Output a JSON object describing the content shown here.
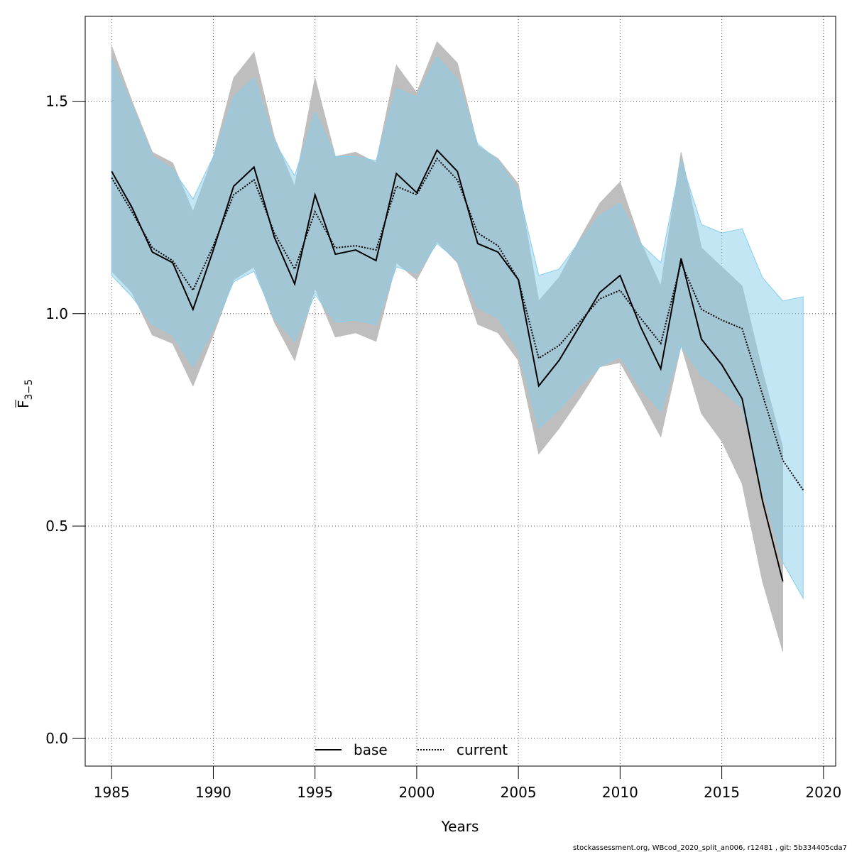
{
  "chart_data": {
    "type": "line",
    "xlabel": "Years",
    "ylabel": {
      "main": "F",
      "subscript": "3−5"
    },
    "xlim": [
      1983.7,
      2020.6
    ],
    "ylim": [
      -0.065,
      1.7
    ],
    "x_ticks": [
      1985,
      1990,
      1995,
      2000,
      2005,
      2010,
      2015,
      2020
    ],
    "x_tick_labels": [
      "1985",
      "1990",
      "1995",
      "2000",
      "2005",
      "2010",
      "2015",
      "2020"
    ],
    "y_ticks": [
      0.0,
      0.5,
      1.0,
      1.5
    ],
    "y_tick_labels": [
      "0.0",
      "0.5",
      "1.0",
      "1.5"
    ],
    "grid": true,
    "legend_position": "bottom-center",
    "series": [
      {
        "name": "base",
        "line_style": "solid",
        "line_color": "#000000",
        "band_color": "#bebebe",
        "x": [
          1985,
          1986,
          1987,
          1988,
          1989,
          1990,
          1991,
          1992,
          1993,
          1994,
          1995,
          1996,
          1997,
          1998,
          1999,
          2000,
          2001,
          2002,
          2003,
          2004,
          2005,
          2006,
          2007,
          2008,
          2009,
          2010,
          2011,
          2012,
          2013,
          2014,
          2015,
          2016,
          2017,
          2018
        ],
        "values": [
          1.335,
          1.25,
          1.145,
          1.12,
          1.01,
          1.15,
          1.3,
          1.345,
          1.18,
          1.07,
          1.28,
          1.14,
          1.15,
          1.125,
          1.33,
          1.285,
          1.385,
          1.335,
          1.165,
          1.145,
          1.08,
          0.83,
          0.89,
          0.97,
          1.05,
          1.09,
          0.97,
          0.87,
          1.13,
          0.94,
          0.88,
          0.8,
          0.56,
          0.37
        ],
        "lower": [
          1.1,
          1.05,
          0.95,
          0.93,
          0.83,
          0.95,
          1.08,
          1.11,
          0.98,
          0.89,
          1.06,
          0.945,
          0.955,
          0.935,
          1.12,
          1.08,
          1.17,
          1.12,
          0.975,
          0.955,
          0.89,
          0.67,
          0.73,
          0.8,
          0.875,
          0.885,
          0.8,
          0.71,
          0.925,
          0.765,
          0.7,
          0.6,
          0.37,
          0.205
        ],
        "upper": [
          1.63,
          1.5,
          1.38,
          1.355,
          1.24,
          1.37,
          1.555,
          1.615,
          1.415,
          1.3,
          1.555,
          1.37,
          1.38,
          1.355,
          1.585,
          1.52,
          1.64,
          1.59,
          1.395,
          1.365,
          1.305,
          1.03,
          1.085,
          1.175,
          1.26,
          1.31,
          1.17,
          1.065,
          1.38,
          1.155,
          1.11,
          1.065,
          0.865,
          0.685
        ]
      },
      {
        "name": "current",
        "line_style": "dotted",
        "line_color": "#000000",
        "band_color": "#87ceeb",
        "x": [
          1985,
          1986,
          1987,
          1988,
          1989,
          1990,
          1991,
          1992,
          1993,
          1994,
          1995,
          1996,
          1997,
          1998,
          1999,
          2000,
          2001,
          2002,
          2003,
          2004,
          2005,
          2006,
          2007,
          2008,
          2009,
          2010,
          2011,
          2012,
          2013,
          2014,
          2015,
          2016,
          2017,
          2018,
          2019
        ],
        "values": [
          1.32,
          1.24,
          1.155,
          1.125,
          1.055,
          1.16,
          1.28,
          1.315,
          1.19,
          1.105,
          1.24,
          1.155,
          1.16,
          1.15,
          1.3,
          1.28,
          1.365,
          1.315,
          1.19,
          1.16,
          1.08,
          0.895,
          0.925,
          0.98,
          1.035,
          1.055,
          0.99,
          0.93,
          1.12,
          1.01,
          0.985,
          0.965,
          0.81,
          0.655,
          0.585
        ],
        "lower": [
          1.09,
          1.04,
          0.975,
          0.95,
          0.875,
          0.965,
          1.075,
          1.1,
          0.99,
          0.935,
          1.045,
          0.98,
          0.985,
          0.975,
          1.11,
          1.095,
          1.165,
          1.125,
          1.015,
          0.99,
          0.915,
          0.73,
          0.775,
          0.83,
          0.875,
          0.9,
          0.825,
          0.77,
          0.925,
          0.855,
          0.82,
          0.78,
          0.59,
          0.415,
          0.33
        ],
        "upper": [
          1.6,
          1.49,
          1.37,
          1.34,
          1.27,
          1.37,
          1.51,
          1.555,
          1.405,
          1.325,
          1.475,
          1.37,
          1.37,
          1.36,
          1.53,
          1.51,
          1.605,
          1.55,
          1.4,
          1.36,
          1.29,
          1.09,
          1.105,
          1.17,
          1.23,
          1.26,
          1.165,
          1.12,
          1.36,
          1.21,
          1.19,
          1.2,
          1.085,
          1.03,
          1.04
        ]
      }
    ]
  },
  "legend": {
    "items": [
      "base",
      "current"
    ]
  },
  "footer": "stockassessment.org, WBcod_2020_split_an006, r12481 , git: 5b334405cda7",
  "colors": {
    "base_band": "#bebebe",
    "current_band": "#87ceeb",
    "grid": "#555555"
  }
}
